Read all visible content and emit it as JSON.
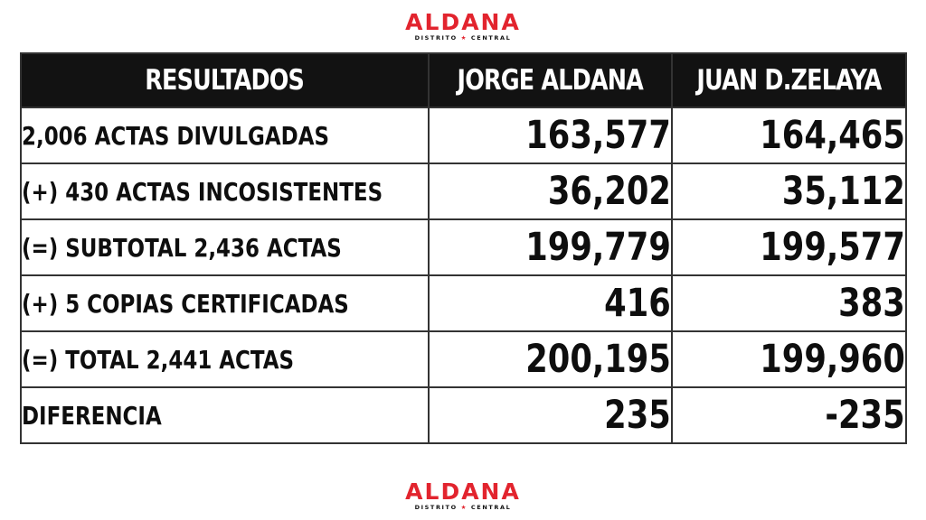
{
  "brand": {
    "name": "ALDANA",
    "subtitle_left": "DISTRITO",
    "subtitle_right": "CENTRAL",
    "star": "★",
    "color": "#e2242e"
  },
  "table": {
    "headers": [
      "RESULTADOS",
      "JORGE ALDANA",
      "JUAN D.ZELAYA"
    ],
    "rows": [
      {
        "label": "2,006 ACTAS DIVULGADAS",
        "aldana": "163,577",
        "zelaya": "164,465"
      },
      {
        "label": "(+) 430 ACTAS INCOSISTENTES",
        "aldana": "36,202",
        "zelaya": "35,112"
      },
      {
        "label": "(=) SUBTOTAL 2,436 ACTAS",
        "aldana": "199,779",
        "zelaya": "199,577"
      },
      {
        "label": "(+) 5 COPIAS CERTIFICADAS",
        "aldana": "416",
        "zelaya": "383"
      },
      {
        "label": "(=) TOTAL 2,441 ACTAS",
        "aldana": "200,195",
        "zelaya": "199,960"
      },
      {
        "label": "DIFERENCIA",
        "aldana": "235",
        "zelaya": "-235"
      }
    ],
    "header_bg": "#121212",
    "header_fg": "#ffffff"
  }
}
